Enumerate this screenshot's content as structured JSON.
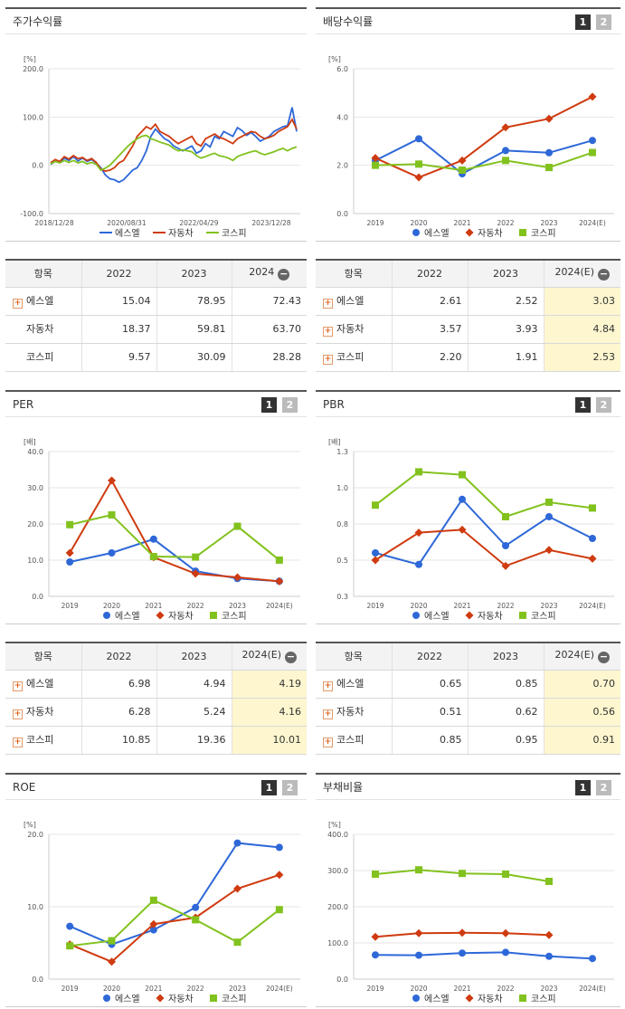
{
  "colors": {
    "esl": "#2e68d8",
    "car": "#cf3b10",
    "kospi": "#82c21e"
  },
  "legend": [
    "에스엘",
    "자동차",
    "코스피"
  ],
  "panels": {
    "stock": {
      "title": "주가수익률"
    },
    "dividend": {
      "title": "배당수익률",
      "pages": [
        "1",
        "2"
      ]
    },
    "per": {
      "title": "PER",
      "pages": [
        "1",
        "2"
      ]
    },
    "pbr": {
      "title": "PBR",
      "pages": [
        "1",
        "2"
      ]
    },
    "roe": {
      "title": "ROE",
      "pages": [
        "1",
        "2"
      ]
    },
    "debt": {
      "title": "부채비율",
      "pages": [
        "1",
        "2"
      ]
    }
  },
  "tables": {
    "stock": {
      "headers": [
        "항목",
        "2022",
        "2023",
        "2024"
      ],
      "rows": [
        {
          "label": "에스엘",
          "plus": true,
          "values": [
            "15.04",
            "78.95",
            "72.43"
          ]
        },
        {
          "label": "자동차",
          "plus": false,
          "values": [
            "18.37",
            "59.81",
            "63.70"
          ]
        },
        {
          "label": "코스피",
          "plus": false,
          "values": [
            "9.57",
            "30.09",
            "28.28"
          ]
        }
      ]
    },
    "dividend": {
      "headers": [
        "항목",
        "2022",
        "2023",
        "2024(E)"
      ],
      "rows": [
        {
          "label": "에스엘",
          "plus": true,
          "values": [
            "2.61",
            "2.52",
            "3.03"
          ]
        },
        {
          "label": "자동차",
          "plus": true,
          "values": [
            "3.57",
            "3.93",
            "4.84"
          ]
        },
        {
          "label": "코스피",
          "plus": true,
          "values": [
            "2.20",
            "1.91",
            "2.53"
          ]
        }
      ]
    },
    "per": {
      "headers": [
        "항목",
        "2022",
        "2023",
        "2024(E)"
      ],
      "rows": [
        {
          "label": "에스엘",
          "plus": true,
          "values": [
            "6.98",
            "4.94",
            "4.19"
          ]
        },
        {
          "label": "자동차",
          "plus": true,
          "values": [
            "6.28",
            "5.24",
            "4.16"
          ]
        },
        {
          "label": "코스피",
          "plus": true,
          "values": [
            "10.85",
            "19.36",
            "10.01"
          ]
        }
      ]
    },
    "pbr": {
      "headers": [
        "항목",
        "2022",
        "2023",
        "2024(E)"
      ],
      "rows": [
        {
          "label": "에스엘",
          "plus": true,
          "values": [
            "0.65",
            "0.85",
            "0.70"
          ]
        },
        {
          "label": "자동차",
          "plus": true,
          "values": [
            "0.51",
            "0.62",
            "0.56"
          ]
        },
        {
          "label": "코스피",
          "plus": true,
          "values": [
            "0.85",
            "0.95",
            "0.91"
          ]
        }
      ]
    }
  },
  "chart_data": [
    {
      "id": "stock",
      "type": "line",
      "unit": "[%]",
      "ylim": [
        -100,
        200
      ],
      "yticks": [
        "200.0",
        "100.0",
        "0.0",
        "-100.0"
      ],
      "xticks": [
        "2018/12/28",
        "2020/08/31",
        "2022/04/29",
        "2023/12/28"
      ],
      "series": [
        {
          "name": "에스엘",
          "values": [
            2,
            8,
            6,
            15,
            10,
            18,
            9,
            15,
            8,
            12,
            5,
            -5,
            -20,
            -28,
            -30,
            -35,
            -30,
            -20,
            -10,
            -5,
            10,
            30,
            60,
            75,
            65,
            55,
            50,
            40,
            35,
            30,
            35,
            40,
            25,
            30,
            45,
            38,
            60,
            55,
            70,
            65,
            60,
            78,
            72,
            62,
            68,
            60,
            50,
            55,
            60,
            70,
            75,
            80,
            82,
            120,
            70
          ]
        },
        {
          "name": "자동차",
          "values": [
            5,
            12,
            8,
            18,
            13,
            20,
            14,
            16,
            10,
            14,
            6,
            -8,
            -12,
            -10,
            -5,
            5,
            10,
            25,
            40,
            60,
            70,
            80,
            75,
            85,
            70,
            65,
            60,
            52,
            45,
            50,
            55,
            60,
            45,
            40,
            55,
            60,
            65,
            58,
            55,
            50,
            45,
            55,
            60,
            65,
            70,
            68,
            60,
            55,
            58,
            62,
            70,
            75,
            80,
            95,
            75
          ]
        },
        {
          "name": "코스피",
          "values": [
            3,
            8,
            5,
            10,
            6,
            10,
            5,
            8,
            3,
            6,
            2,
            -10,
            -6,
            0,
            10,
            20,
            30,
            40,
            48,
            55,
            60,
            62,
            55,
            52,
            48,
            45,
            42,
            35,
            30,
            32,
            30,
            28,
            20,
            15,
            18,
            22,
            25,
            20,
            18,
            15,
            10,
            18,
            22,
            25,
            28,
            30,
            25,
            22,
            25,
            28,
            32,
            35,
            30,
            35,
            38
          ]
        }
      ]
    },
    {
      "id": "dividend",
      "type": "line",
      "unit": "[%]",
      "ylim": [
        0,
        6
      ],
      "yticks": [
        "6.0",
        "4.0",
        "2.0",
        "0.0"
      ],
      "categories": [
        "2019",
        "2020",
        "2021",
        "2022",
        "2023",
        "2024(E)"
      ],
      "series": [
        {
          "name": "에스엘",
          "values": [
            2.2,
            3.1,
            1.65,
            2.61,
            2.52,
            3.03
          ]
        },
        {
          "name": "자동차",
          "values": [
            2.3,
            1.5,
            2.2,
            3.57,
            3.93,
            4.84
          ]
        },
        {
          "name": "코스피",
          "values": [
            2.0,
            2.05,
            1.8,
            2.2,
            1.91,
            2.53
          ]
        }
      ]
    },
    {
      "id": "per",
      "type": "line",
      "unit": "[배]",
      "ylim": [
        0,
        40
      ],
      "yticks": [
        "40.0",
        "30.0",
        "20.0",
        "10.0",
        "0.0"
      ],
      "categories": [
        "2019",
        "2020",
        "2021",
        "2022",
        "2023",
        "2024(E)"
      ],
      "series": [
        {
          "name": "에스엘",
          "values": [
            9.5,
            12.0,
            15.8,
            6.98,
            4.94,
            4.19
          ]
        },
        {
          "name": "자동차",
          "values": [
            12.0,
            32.0,
            10.8,
            6.28,
            5.24,
            4.16
          ]
        },
        {
          "name": "코스피",
          "values": [
            19.8,
            22.5,
            11.0,
            10.85,
            19.36,
            10.01
          ]
        }
      ]
    },
    {
      "id": "pbr",
      "type": "line",
      "unit": "[배]",
      "ylim": [
        0.3,
        1.3
      ],
      "yticks": [
        "1.3",
        "1.0",
        "0.8",
        "0.5",
        "0.3"
      ],
      "categories": [
        "2019",
        "2020",
        "2021",
        "2022",
        "2023",
        "2024(E)"
      ],
      "series": [
        {
          "name": "에스엘",
          "values": [
            0.6,
            0.52,
            0.97,
            0.65,
            0.85,
            0.7
          ]
        },
        {
          "name": "자동차",
          "values": [
            0.55,
            0.74,
            0.76,
            0.51,
            0.62,
            0.56
          ]
        },
        {
          "name": "코스피",
          "values": [
            0.93,
            1.16,
            1.14,
            0.85,
            0.95,
            0.91
          ]
        }
      ]
    },
    {
      "id": "roe",
      "type": "line",
      "unit": "[%]",
      "ylim": [
        0,
        20
      ],
      "yticks": [
        "20.0",
        "10.0",
        "0.0"
      ],
      "categories": [
        "2019",
        "2020",
        "2021",
        "2022",
        "2023",
        "2024(E)"
      ],
      "series": [
        {
          "name": "에스엘",
          "values": [
            7.3,
            4.8,
            6.8,
            9.9,
            18.8,
            18.2
          ]
        },
        {
          "name": "자동차",
          "values": [
            4.8,
            2.4,
            7.6,
            8.5,
            12.5,
            14.4
          ]
        },
        {
          "name": "코스피",
          "values": [
            4.6,
            5.3,
            10.9,
            8.2,
            5.1,
            9.6
          ]
        }
      ]
    },
    {
      "id": "debt",
      "type": "line",
      "unit": "[%]",
      "ylim": [
        0,
        400
      ],
      "yticks": [
        "400.0",
        "300.0",
        "200.0",
        "100.0",
        "0.0"
      ],
      "categories": [
        "2019",
        "2020",
        "2021",
        "2022",
        "2023",
        "2024(E)"
      ],
      "series": [
        {
          "name": "에스엘",
          "values": [
            67,
            66,
            72,
            74,
            63,
            57
          ]
        },
        {
          "name": "자동차",
          "values": [
            117,
            127,
            128,
            127,
            122,
            null
          ]
        },
        {
          "name": "코스피",
          "values": [
            290,
            302,
            292,
            290,
            270,
            null
          ]
        }
      ]
    }
  ]
}
